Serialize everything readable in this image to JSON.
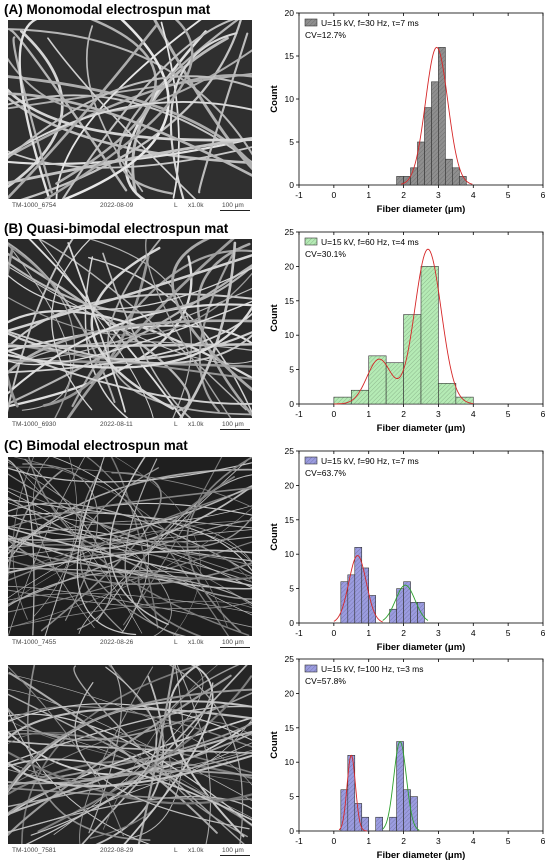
{
  "panel_titles": {
    "a": "(A) Monomodal electrospun mat",
    "b": "(B) Quasi-bimodal electrospun mat",
    "c": "(C) Bimodal electrospun mat"
  },
  "sem_images": [
    {
      "id": "TM-1000_6754",
      "date": "2022-08-09",
      "mode": "L",
      "mag": "x1.0k",
      "scale": "100 μm"
    },
    {
      "id": "TM-1000_6930",
      "date": "2022-08-11",
      "mode": "L",
      "mag": "x1.0k",
      "scale": "100 μm"
    },
    {
      "id": "TM-1000_7455",
      "date": "2022-08-26",
      "mode": "L",
      "mag": "x1.0k",
      "scale": "100 μm"
    },
    {
      "id": "TM-1000_7581",
      "date": "2022-08-29",
      "mode": "L",
      "mag": "x1.0k",
      "scale": "100 μm"
    }
  ],
  "chart_data": [
    {
      "type": "bar",
      "xlabel": "Fiber diameter (μm)",
      "ylabel": "Count",
      "xlim": [
        -1,
        6
      ],
      "ylim": [
        0,
        20
      ],
      "xticks": [
        "-1",
        "0",
        "1",
        "2",
        "3",
        "4",
        "5",
        "6"
      ],
      "yticks": [
        "0",
        "5",
        "10",
        "15",
        "20"
      ],
      "legend": "U=15 kV, f=30 Hz, τ=7 ms",
      "cv": "CV=12.7%",
      "bar_color": "#8f8f8f",
      "fit_color": "#d62728",
      "bins": [
        {
          "x0": 1.8,
          "x1": 2.0,
          "count": 1
        },
        {
          "x0": 2.0,
          "x1": 2.2,
          "count": 1
        },
        {
          "x0": 2.2,
          "x1": 2.4,
          "count": 2
        },
        {
          "x0": 2.4,
          "x1": 2.6,
          "count": 5
        },
        {
          "x0": 2.6,
          "x1": 2.8,
          "count": 9
        },
        {
          "x0": 2.8,
          "x1": 3.0,
          "count": 12
        },
        {
          "x0": 3.0,
          "x1": 3.2,
          "count": 16
        },
        {
          "x0": 3.2,
          "x1": 3.4,
          "count": 3
        },
        {
          "x0": 3.4,
          "x1": 3.6,
          "count": 2
        },
        {
          "x0": 3.6,
          "x1": 3.8,
          "count": 1
        }
      ],
      "fits": [
        {
          "mu": 2.95,
          "sigma": 0.32,
          "amp": 16
        }
      ]
    },
    {
      "type": "bar",
      "xlabel": "Fiber diameter (μm)",
      "ylabel": "Count",
      "xlim": [
        -1,
        6
      ],
      "ylim": [
        0,
        25
      ],
      "xticks": [
        "-1",
        "0",
        "1",
        "2",
        "3",
        "4",
        "5",
        "6"
      ],
      "yticks": [
        "0",
        "5",
        "10",
        "15",
        "20",
        "25"
      ],
      "legend": "U=15 kV, f=60 Hz, τ=4 ms",
      "cv": "CV=30.1%",
      "bar_color": "#b5ebb5",
      "fit_color": "#d62728",
      "bins": [
        {
          "x0": 0.0,
          "x1": 0.5,
          "count": 1
        },
        {
          "x0": 0.5,
          "x1": 1.0,
          "count": 2
        },
        {
          "x0": 1.0,
          "x1": 1.5,
          "count": 7
        },
        {
          "x0": 1.5,
          "x1": 2.0,
          "count": 6
        },
        {
          "x0": 2.0,
          "x1": 2.5,
          "count": 13
        },
        {
          "x0": 2.5,
          "x1": 3.0,
          "count": 20
        },
        {
          "x0": 3.0,
          "x1": 3.5,
          "count": 3
        },
        {
          "x0": 3.5,
          "x1": 4.0,
          "count": 1
        }
      ],
      "fit_combined": true,
      "fits": [
        {
          "mu": 1.3,
          "sigma": 0.35,
          "amp": 6.5
        },
        {
          "mu": 2.7,
          "sigma": 0.38,
          "amp": 22.5
        }
      ]
    },
    {
      "type": "bar",
      "xlabel": "Fiber diameter (μm)",
      "ylabel": "Count",
      "xlim": [
        -1,
        6
      ],
      "ylim": [
        0,
        25
      ],
      "xticks": [
        "-1",
        "0",
        "1",
        "2",
        "3",
        "4",
        "5",
        "6"
      ],
      "yticks": [
        "0",
        "5",
        "10",
        "15",
        "20",
        "25"
      ],
      "legend": "U=15 kV, f=90 Hz, τ=7 ms",
      "cv": "CV=63.7%",
      "bar_color": "#9b9ce0",
      "fit_color": "#d62728",
      "fit_color_2": "#2ca02c",
      "bins": [
        {
          "x0": 0.2,
          "x1": 0.4,
          "count": 6
        },
        {
          "x0": 0.4,
          "x1": 0.6,
          "count": 7
        },
        {
          "x0": 0.6,
          "x1": 0.8,
          "count": 11
        },
        {
          "x0": 0.8,
          "x1": 1.0,
          "count": 8
        },
        {
          "x0": 1.0,
          "x1": 1.2,
          "count": 4
        },
        {
          "x0": 1.6,
          "x1": 1.8,
          "count": 2
        },
        {
          "x0": 1.8,
          "x1": 2.0,
          "count": 5
        },
        {
          "x0": 2.0,
          "x1": 2.2,
          "count": 6
        },
        {
          "x0": 2.2,
          "x1": 2.4,
          "count": 3
        },
        {
          "x0": 2.4,
          "x1": 2.6,
          "count": 3
        }
      ],
      "fits": [
        {
          "mu": 0.68,
          "sigma": 0.25,
          "amp": 9.8,
          "lo": 0.0,
          "hi": 1.4
        },
        {
          "mu": 2.05,
          "sigma": 0.28,
          "amp": 5.5,
          "lo": 1.4,
          "hi": 2.7
        }
      ]
    },
    {
      "type": "bar",
      "xlabel": "Fiber diameter (μm)",
      "ylabel": "Count",
      "xlim": [
        -1,
        6
      ],
      "ylim": [
        0,
        25
      ],
      "xticks": [
        "-1",
        "0",
        "1",
        "2",
        "3",
        "4",
        "5",
        "6"
      ],
      "yticks": [
        "0",
        "5",
        "10",
        "15",
        "20",
        "25"
      ],
      "legend": "U=15 kV, f=100 Hz, τ=3 ms",
      "cv": "CV=57.8%",
      "bar_color": "#9b9ce0",
      "fit_color": "#d62728",
      "fit_color_2": "#2ca02c",
      "bins": [
        {
          "x0": 0.2,
          "x1": 0.4,
          "count": 6
        },
        {
          "x0": 0.4,
          "x1": 0.6,
          "count": 11
        },
        {
          "x0": 0.6,
          "x1": 0.8,
          "count": 4
        },
        {
          "x0": 0.8,
          "x1": 1.0,
          "count": 2
        },
        {
          "x0": 1.2,
          "x1": 1.4,
          "count": 2
        },
        {
          "x0": 1.6,
          "x1": 1.8,
          "count": 2
        },
        {
          "x0": 1.8,
          "x1": 2.0,
          "count": 13
        },
        {
          "x0": 2.0,
          "x1": 2.2,
          "count": 6
        },
        {
          "x0": 2.2,
          "x1": 2.4,
          "count": 5
        }
      ],
      "fits": [
        {
          "mu": 0.5,
          "sigma": 0.12,
          "amp": 11,
          "lo": 0.15,
          "hi": 0.95
        },
        {
          "mu": 1.9,
          "sigma": 0.18,
          "amp": 13,
          "lo": 1.4,
          "hi": 2.45
        }
      ]
    }
  ]
}
